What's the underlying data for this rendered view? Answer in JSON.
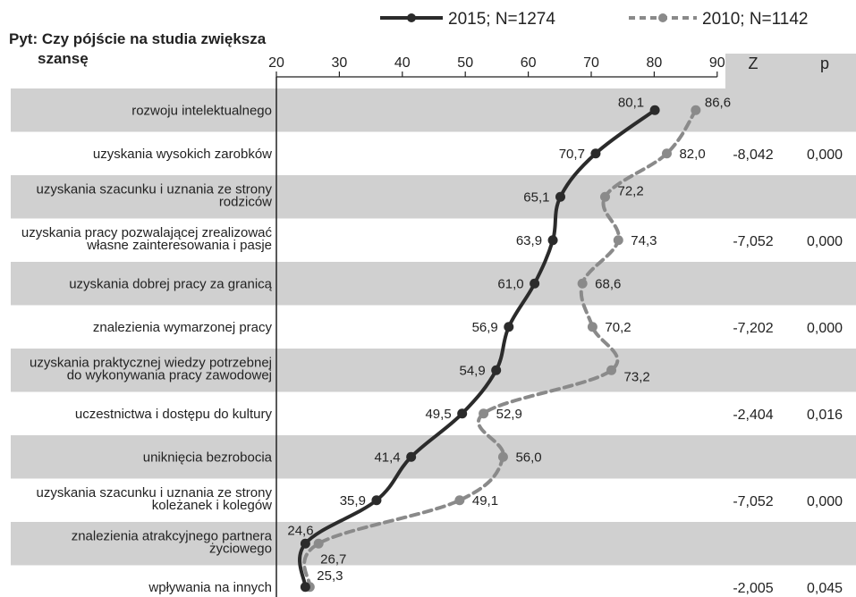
{
  "chart_data": {
    "type": "line",
    "title": "Pyt: Czy pójście na studia zwiększa szansę",
    "title_lines": [
      "Pyt: Czy pójście na studia zwiększa",
      "szansę"
    ],
    "x_axis": {
      "ticks": [
        20,
        30,
        40,
        50,
        60,
        70,
        80,
        90
      ],
      "range": [
        20,
        90
      ]
    },
    "orientation": "horizontal-values",
    "categories": [
      "rozwoju intelektualnego",
      "uzyskania wysokich zarobków",
      "uzyskania szacunku i uznania ze strony rodziców",
      "uzyskania pracy pozwalającej zrealizować własne zainteresowania i pasje",
      "uzyskania dobrej pracy za granicą",
      "znalezienia wymarzonej pracy",
      "uzyskania praktycznej wiedzy potrzebnej do wykonywania pracy zawodowej",
      "uczestnictwa i dostępu do kultury",
      "uniknięcia bezrobocia",
      "uzyskania szacunku i uznania ze strony koleżanek i kolegów",
      "znalezienia atrakcyjnego partnera życiowego",
      "wpływania na innych"
    ],
    "category_lines": [
      [
        "rozwoju intelektualnego"
      ],
      [
        "uzyskania wysokich zarobków"
      ],
      [
        "uzyskania szacunku i uznania ze strony",
        "rodziców"
      ],
      [
        "uzyskania pracy pozwalającej zrealizować",
        "własne zainteresowania i pasje"
      ],
      [
        "uzyskania dobrej pracy za granicą"
      ],
      [
        "znalezienia wymarzonej pracy"
      ],
      [
        "uzyskania praktycznej wiedzy potrzebnej",
        "do wykonywania pracy zawodowej"
      ],
      [
        "uczestnictwa i dostępu do kultury"
      ],
      [
        "uniknięcia bezrobocia"
      ],
      [
        "uzyskania szacunku i uznania ze strony",
        "koleżanek i kolegów"
      ],
      [
        "znalezienia atrakcyjnego partnera",
        "życiowego"
      ],
      [
        "wpływania na innych"
      ]
    ],
    "series": [
      {
        "name": "2015; N=1274",
        "values": [
          80.1,
          70.7,
          65.1,
          63.9,
          61.0,
          56.9,
          54.9,
          49.5,
          41.4,
          35.9,
          24.6,
          24.6
        ],
        "labels": [
          "80,1",
          "70,7",
          "65,1",
          "63,9",
          "61,0",
          "56,9",
          "54,9",
          "49,5",
          "41,4",
          "35,9",
          "24,6",
          "24,6"
        ],
        "color": "#2b2b2b",
        "style": "solid"
      },
      {
        "name": "2010; N=1142",
        "values": [
          86.6,
          82.0,
          72.2,
          74.3,
          68.6,
          70.2,
          73.2,
          52.9,
          56.0,
          49.1,
          26.7,
          25.3
        ],
        "labels": [
          "86,6",
          "82,0",
          "72,2",
          "74,3",
          "68,6",
          "70,2",
          "73,2",
          "52,9",
          "56,0",
          "49,1",
          "26,7",
          "25,3"
        ],
        "color": "#8a8a8a",
        "style": "dashed"
      }
    ],
    "stats": {
      "headers": [
        "Z",
        "p"
      ],
      "rows": [
        {
          "row": 1,
          "z": "-8,042",
          "p": "0,000"
        },
        {
          "row": 3,
          "z": "-7,052",
          "p": "0,000"
        },
        {
          "row": 5,
          "z": "-7,202",
          "p": "0,000"
        },
        {
          "row": 7,
          "z": "-2,404",
          "p": "0,016"
        },
        {
          "row": 9,
          "z": "-7,052",
          "p": "0,000"
        },
        {
          "row": 11,
          "z": "-2,005",
          "p": "0,045"
        }
      ]
    },
    "legend_position": "top-right",
    "colors": {
      "band": "#d0d0d0",
      "line_2015": "#2b2b2b",
      "line_2010": "#8a8a8a"
    }
  }
}
